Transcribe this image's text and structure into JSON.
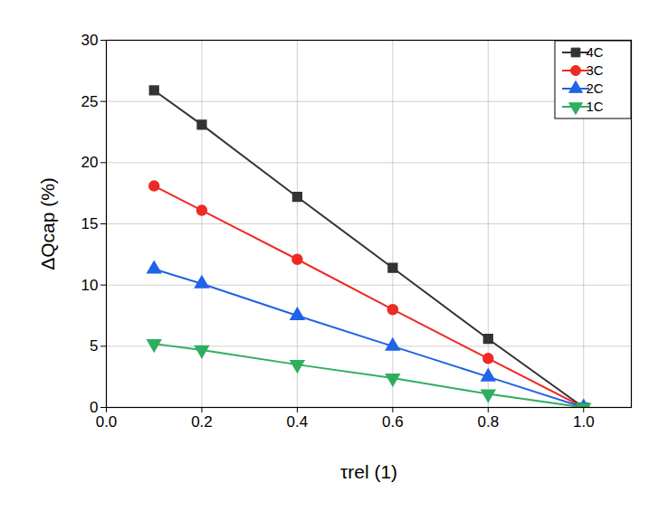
{
  "chart_data": {
    "type": "line",
    "x_label": "τrel (1)",
    "y_label": "ΔQcap (%)",
    "x": [
      0.1,
      0.2,
      0.4,
      0.6,
      0.8,
      1.0
    ],
    "series": [
      {
        "name": "4C",
        "color": "#333333",
        "marker": "square",
        "values": [
          25.9,
          23.1,
          17.2,
          11.4,
          5.6,
          0.0
        ]
      },
      {
        "name": "3C",
        "color": "#ee2a24",
        "marker": "circle",
        "values": [
          18.1,
          16.1,
          12.1,
          8.0,
          4.0,
          0.0
        ]
      },
      {
        "name": "2C",
        "color": "#1f63e6",
        "marker": "triangle-up",
        "values": [
          11.3,
          10.1,
          7.5,
          5.0,
          2.5,
          0.0
        ]
      },
      {
        "name": "1C",
        "color": "#2eae5e",
        "marker": "triangle-down",
        "values": [
          5.2,
          4.7,
          3.5,
          2.4,
          1.1,
          0.0
        ]
      }
    ],
    "xlim": [
      0,
      1.1
    ],
    "xticks": [
      {
        "value": 0,
        "label": "0.0"
      },
      0.2,
      0.4,
      0.6,
      0.8,
      {
        "value": 1,
        "label": "1.0"
      }
    ],
    "ylim": [
      0,
      30
    ],
    "yticks": [
      0,
      5,
      10,
      15,
      20,
      25,
      30
    ],
    "grid": true,
    "legend": "top-right"
  }
}
